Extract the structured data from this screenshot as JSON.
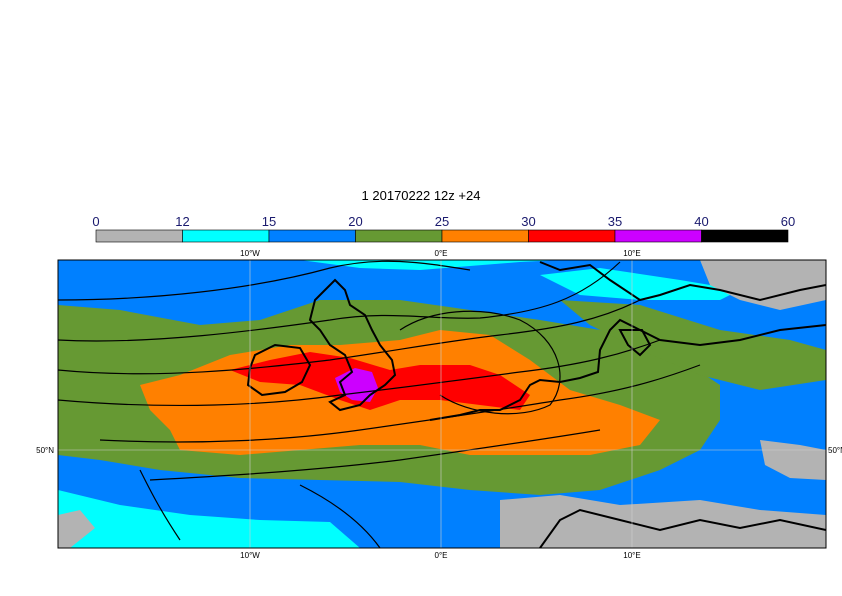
{
  "title": "1 20170222 12z +24",
  "legend": {
    "ticks": [
      "0",
      "12",
      "15",
      "20",
      "25",
      "30",
      "35",
      "40",
      "60"
    ],
    "colors": [
      "#b3b3b3",
      "#00ffff",
      "#0080ff",
      "#669933",
      "#ff8000",
      "#ff0000",
      "#cc00ff",
      "#000000"
    ]
  },
  "axes": {
    "lon_top": [
      "10°W",
      "0°E",
      "10°E"
    ],
    "lon_bottom": [
      "10°W",
      "0°E",
      "10°E"
    ],
    "lat_left": [
      "50°N"
    ],
    "lat_right": [
      "50°N"
    ]
  },
  "colors": {
    "ocean_blue": "#0080ff",
    "cyan": "#00ffff",
    "green": "#669933",
    "orange": "#ff8000",
    "red": "#ff0000",
    "magenta": "#cc00ff",
    "grey": "#b3b3b3",
    "coast": "#000000"
  }
}
